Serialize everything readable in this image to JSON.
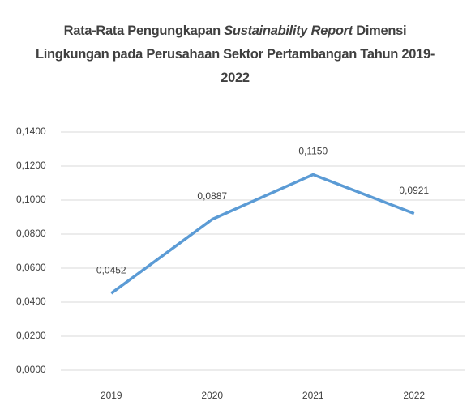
{
  "chart_data": {
    "type": "line",
    "title": [
      "Rata-Rata Pengungkapan ",
      "Sustainability Report",
      " Dimensi Lingkungan pada Perusahaan Sektor Pertambangan Tahun 2019-2022"
    ],
    "categories": [
      "2019",
      "2020",
      "2021",
      "2022"
    ],
    "series": [
      {
        "color": "#5b9bd5",
        "values": [
          0.0452,
          0.0887,
          0.115,
          0.0921
        ],
        "value_labels": [
          "0,0452",
          "0,0887",
          "0,1150",
          "0,0921"
        ]
      }
    ],
    "ylim": [
      0,
      0.14
    ],
    "yticks": [
      {
        "value": 0,
        "label": "0,0000"
      },
      {
        "value": 0.02,
        "label": "0,0200"
      },
      {
        "value": 0.04,
        "label": "0,0400"
      },
      {
        "value": 0.06,
        "label": "0,0600"
      },
      {
        "value": 0.08,
        "label": "0,0800"
      },
      {
        "value": 0.1,
        "label": "0,1000"
      },
      {
        "value": 0.12,
        "label": "0,1200"
      },
      {
        "value": 0.14,
        "label": "0,1400"
      }
    ],
    "grid": true
  }
}
